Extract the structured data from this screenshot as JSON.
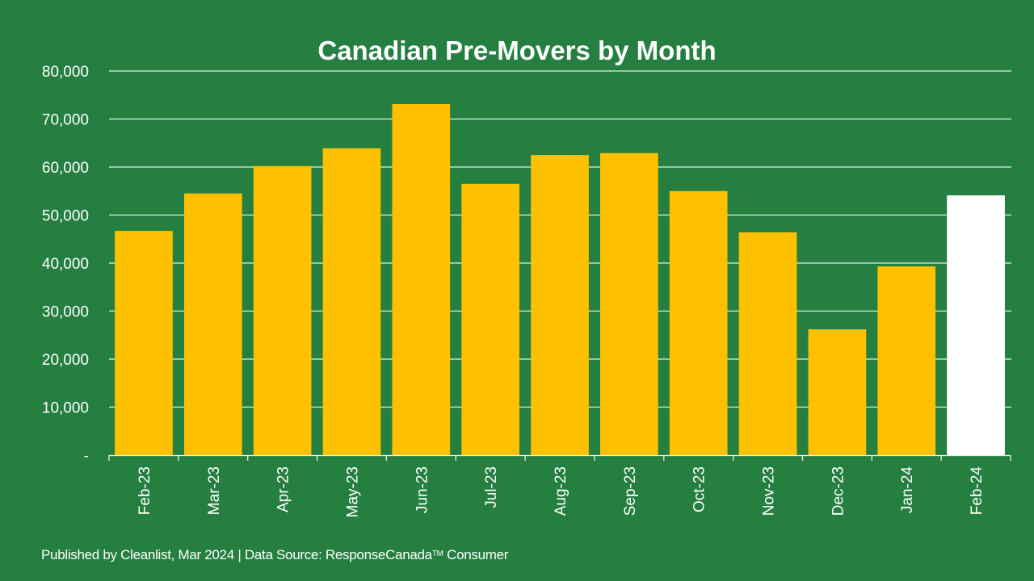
{
  "chart_data": {
    "type": "bar",
    "title": "Canadian Pre-Movers by Month",
    "xlabel": "",
    "ylabel": "",
    "ylim": [
      0,
      80000
    ],
    "yticks": [
      0,
      10000,
      20000,
      30000,
      40000,
      50000,
      60000,
      70000,
      80000
    ],
    "ytick_labels": [
      "-",
      "10,000",
      "20,000",
      "30,000",
      "40,000",
      "50,000",
      "60,000",
      "70,000",
      "80,000"
    ],
    "grid": true,
    "categories": [
      "Feb-23",
      "Mar-23",
      "Apr-23",
      "May-23",
      "Jun-23",
      "Jul-23",
      "Aug-23",
      "Sep-23",
      "Oct-23",
      "Nov-23",
      "Dec-23",
      "Jan-24",
      "Feb-24"
    ],
    "values": [
      46700,
      54500,
      60200,
      63900,
      73100,
      56500,
      62500,
      62900,
      55000,
      46400,
      26200,
      39300,
      54100
    ],
    "highlight_index": 12
  },
  "colors": {
    "background": "#257f40",
    "bar": "#ffc000",
    "highlight_bar": "#ffffff",
    "grid": "#e8efe4",
    "text": "#ffffff"
  },
  "footer": {
    "text_before_tm": "Published by Cleanlist, Mar 2024 | Data Source: ResponseCanada",
    "tm": "TM",
    "text_after_tm": " Consumer"
  }
}
